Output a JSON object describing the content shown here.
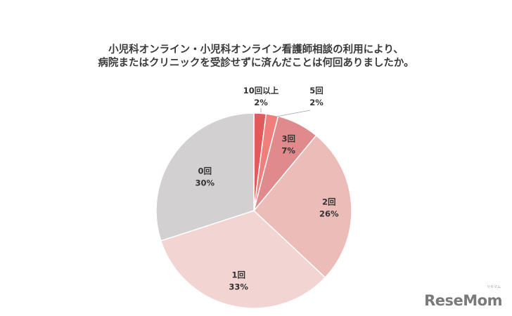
{
  "title": {
    "line1": "小児科オンライン・小児科オンライン看護師相談の利用により、",
    "line2": "病院またはクリニックを受診せずに済んだことは何回ありましたか。"
  },
  "chart_data": {
    "type": "pie",
    "title": "小児科オンライン・小児科オンライン看護師相談の利用により、病院またはクリニックを受診せずに済んだことは何回ありましたか。",
    "start_angle": "top",
    "direction": "clockwise",
    "slices": [
      {
        "label": "10回以上",
        "value": 2,
        "pct_label": "2%",
        "color": "#e05c5c"
      },
      {
        "label": "5回",
        "value": 2,
        "pct_label": "2%",
        "color": "#f07f7b"
      },
      {
        "label": "3回",
        "value": 7,
        "pct_label": "7%",
        "color": "#e08a8c"
      },
      {
        "label": "2回",
        "value": 26,
        "pct_label": "26%",
        "color": "#ecbcb8"
      },
      {
        "label": "1回",
        "value": 33,
        "pct_label": "33%",
        "color": "#f2d4d2"
      },
      {
        "label": "0回",
        "value": 30,
        "pct_label": "30%",
        "color": "#d2d0d1"
      }
    ]
  },
  "logo": {
    "text": "ReseMom",
    "sub": "リセマム"
  }
}
